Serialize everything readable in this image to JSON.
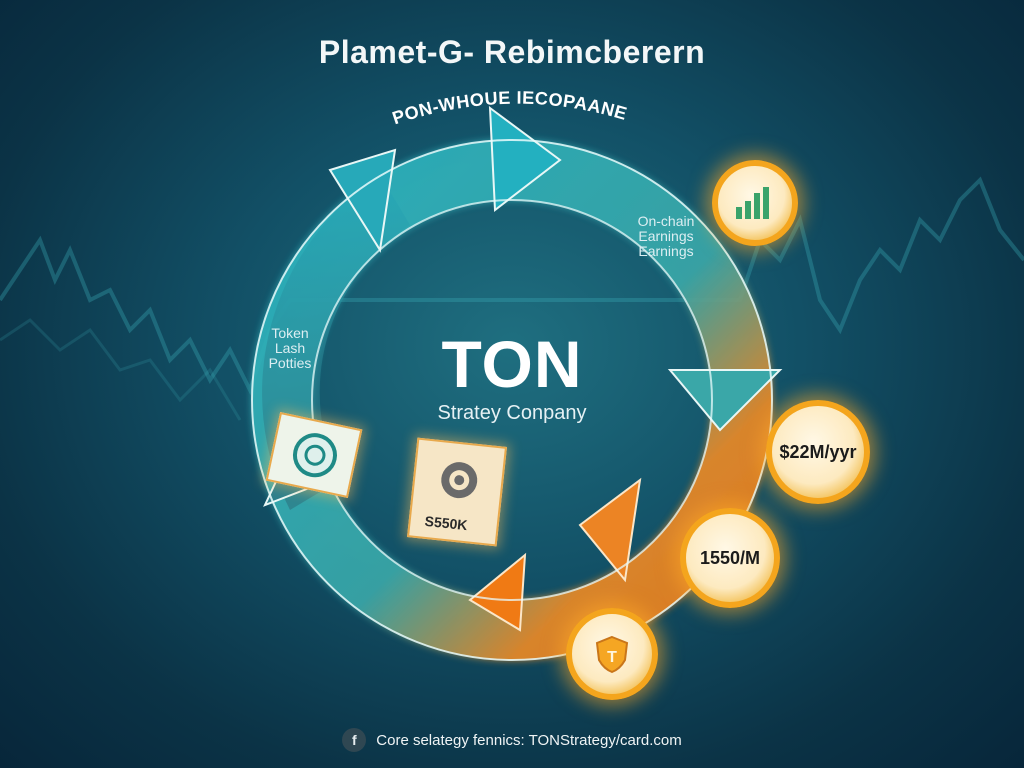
{
  "title": "Plamet-G- Rebimcberern",
  "ring_label": "PON-WHOUE IECOPAANE",
  "center": {
    "title": "TON",
    "subtitle": "Stratey Conpany"
  },
  "labels": {
    "right": [
      "On-chain",
      "Earnings",
      "Earnings"
    ],
    "left": [
      "Token",
      "Lash",
      "Potties"
    ]
  },
  "coins": {
    "revenue": "$22M/yyr",
    "volume": "1550/M"
  },
  "card": {
    "value": "S550K"
  },
  "footer": {
    "icon_letter": "f",
    "text": "Core selategy fennics: TONStrategy/card.com"
  },
  "colors": {
    "teal": "#1ba9b8",
    "orange": "#f08a1f",
    "gold": "#f4a51d"
  }
}
